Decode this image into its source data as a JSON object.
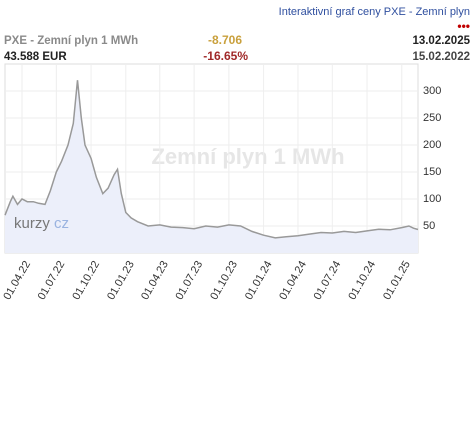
{
  "link": "Interaktivní graf ceny PXE - Zemní plyn",
  "header": {
    "name": "PXE - Zemní plyn 1 MWh",
    "price": "43.588 EUR",
    "change": "-8.706",
    "change_pct": "-16.65%",
    "date_to": "13.02.2025",
    "date_from": "15.02.2022"
  },
  "chart_data": {
    "type": "area",
    "title": "Zemní plyn 1 MWh",
    "logo": [
      "kurzy",
      "cz"
    ],
    "series": [
      {
        "name": "PXE - Zemní plyn 1 MWh",
        "color": "#999999",
        "fill": "#eceffa",
        "x": [
          "2022-02-15",
          "2022-03-01",
          "2022-03-08",
          "2022-03-20",
          "2022-04-01",
          "2022-04-15",
          "2022-05-01",
          "2022-05-15",
          "2022-06-01",
          "2022-06-15",
          "2022-07-01",
          "2022-07-15",
          "2022-08-01",
          "2022-08-15",
          "2022-08-26",
          "2022-09-05",
          "2022-09-15",
          "2022-10-01",
          "2022-10-15",
          "2022-11-01",
          "2022-11-15",
          "2022-12-01",
          "2022-12-10",
          "2022-12-20",
          "2023-01-01",
          "2023-01-15",
          "2023-02-01",
          "2023-03-01",
          "2023-04-01",
          "2023-05-01",
          "2023-06-01",
          "2023-07-01",
          "2023-08-01",
          "2023-09-01",
          "2023-10-01",
          "2023-11-01",
          "2023-12-01",
          "2024-01-01",
          "2024-02-01",
          "2024-03-01",
          "2024-04-01",
          "2024-05-01",
          "2024-06-01",
          "2024-07-01",
          "2024-08-01",
          "2024-09-01",
          "2024-10-01",
          "2024-11-01",
          "2024-12-01",
          "2025-01-01",
          "2025-01-20",
          "2025-02-01",
          "2025-02-13"
        ],
        "values": [
          70,
          95,
          105,
          90,
          100,
          95,
          95,
          92,
          90,
          115,
          150,
          170,
          200,
          240,
          320,
          250,
          200,
          175,
          140,
          110,
          120,
          145,
          155,
          110,
          75,
          65,
          58,
          50,
          52,
          48,
          47,
          45,
          50,
          48,
          52,
          50,
          40,
          33,
          28,
          30,
          32,
          35,
          38,
          37,
          40,
          38,
          41,
          44,
          43,
          47,
          50,
          46,
          43.588
        ]
      }
    ],
    "xlim": [
      "2022-02-15",
      "2025-02-13"
    ],
    "xticks": [
      {
        "value": "2022-04-01",
        "label": "01.04.22"
      },
      {
        "value": "2022-07-01",
        "label": "01.07.22"
      },
      {
        "value": "2022-10-01",
        "label": "01.10.22"
      },
      {
        "value": "2023-01-01",
        "label": "01.01.23"
      },
      {
        "value": "2023-04-01",
        "label": "01.04.23"
      },
      {
        "value": "2023-07-01",
        "label": "01.07.23"
      },
      {
        "value": "2023-10-01",
        "label": "01.10.23"
      },
      {
        "value": "2024-01-01",
        "label": "01.01.24"
      },
      {
        "value": "2024-04-01",
        "label": "01.04.24"
      },
      {
        "value": "2024-07-01",
        "label": "01.07.24"
      },
      {
        "value": "2024-10-01",
        "label": "01.10.24"
      },
      {
        "value": "2025-01-01",
        "label": "01.01.25"
      }
    ],
    "ylim": [
      0,
      350
    ],
    "yticks": [
      50,
      100,
      150,
      200,
      250,
      300
    ],
    "grid": true
  }
}
